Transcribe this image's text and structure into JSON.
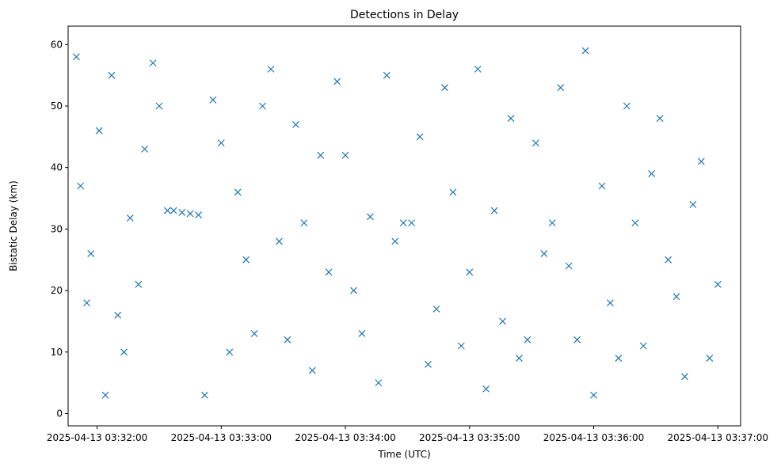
{
  "chart_data": {
    "type": "scatter",
    "title": "Detections in Delay",
    "xlabel": "Time (UTC)",
    "ylabel": "Bistatic Delay (km)",
    "x_tick_labels": [
      "2025-04-13 03:32:00",
      "2025-04-13 03:33:00",
      "2025-04-13 03:34:00",
      "2025-04-13 03:35:00",
      "2025-04-13 03:36:00",
      "2025-04-13 03:37:00"
    ],
    "x_ticks_time": [
      "03:32:00",
      "03:33:00",
      "03:34:00",
      "03:35:00",
      "03:36:00",
      "03:37:00"
    ],
    "xlim_time": [
      "03:31:46",
      "03:37:11"
    ],
    "y_ticks": [
      0,
      10,
      20,
      30,
      40,
      50,
      60
    ],
    "ylim": [
      -2,
      63
    ],
    "marker": "x",
    "color": "#1f77b4",
    "grid": false,
    "series": [
      {
        "x": [
          "03:31:50",
          "03:31:52",
          "03:31:55",
          "03:31:57",
          "03:32:01",
          "03:32:04",
          "03:32:07",
          "03:32:10",
          "03:32:13",
          "03:32:16",
          "03:32:20",
          "03:32:23",
          "03:32:27",
          "03:32:30",
          "03:32:34",
          "03:32:37",
          "03:32:41",
          "03:32:45",
          "03:32:49",
          "03:32:52",
          "03:32:56",
          "03:33:00",
          "03:33:04",
          "03:33:08",
          "03:33:12",
          "03:33:16",
          "03:33:20",
          "03:33:24",
          "03:33:28",
          "03:33:32",
          "03:33:36",
          "03:33:40",
          "03:33:44",
          "03:33:48",
          "03:33:52",
          "03:33:56",
          "03:34:00",
          "03:34:04",
          "03:34:08",
          "03:34:12",
          "03:34:16",
          "03:34:20",
          "03:34:24",
          "03:34:28",
          "03:34:32",
          "03:34:36",
          "03:34:40",
          "03:34:44",
          "03:34:48",
          "03:34:52",
          "03:34:56",
          "03:35:00",
          "03:35:04",
          "03:35:08",
          "03:35:12",
          "03:35:16",
          "03:35:20",
          "03:35:24",
          "03:35:28",
          "03:35:32",
          "03:35:36",
          "03:35:40",
          "03:35:44",
          "03:35:48",
          "03:35:52",
          "03:35:56",
          "03:36:00",
          "03:36:04",
          "03:36:08",
          "03:36:12",
          "03:36:16",
          "03:36:20",
          "03:36:24",
          "03:36:28",
          "03:36:32",
          "03:36:36",
          "03:36:40",
          "03:36:44",
          "03:36:48",
          "03:36:52",
          "03:36:56",
          "03:37:00"
        ],
        "y": [
          58,
          37,
          18,
          26,
          46,
          3,
          55,
          16,
          10,
          31.8,
          21,
          43,
          57,
          50,
          33,
          33,
          32.7,
          32.5,
          32.3,
          3,
          51,
          44,
          10,
          36,
          25,
          13,
          50,
          56,
          28,
          12,
          47,
          31,
          7,
          42,
          23,
          54,
          42,
          20,
          13,
          32,
          5,
          55,
          28,
          31,
          31,
          45,
          8,
          17,
          53,
          36,
          11,
          23,
          56,
          4,
          33,
          15,
          48,
          9,
          12,
          44,
          26,
          31,
          53,
          24,
          12,
          59,
          3,
          37,
          18,
          9,
          50,
          31,
          11,
          39,
          48,
          25,
          19,
          6,
          34,
          41,
          9,
          21
        ]
      }
    ]
  }
}
